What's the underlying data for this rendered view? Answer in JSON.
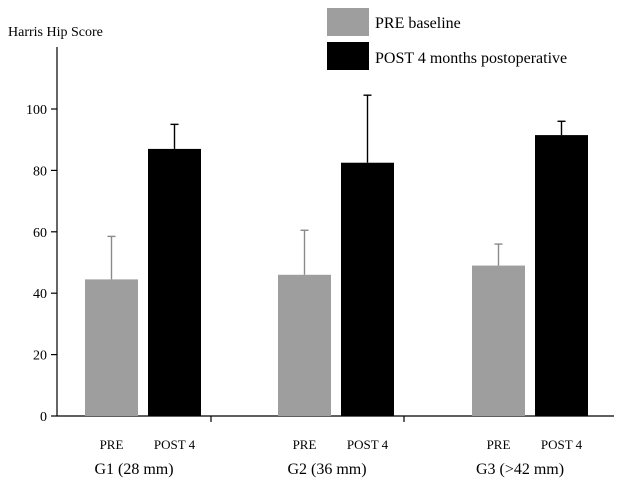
{
  "chart_data": {
    "type": "bar",
    "ylabel": "Harris Hip Score",
    "ylim": [
      0,
      120
    ],
    "yticks": [
      0,
      20,
      40,
      60,
      80,
      100
    ],
    "grid": false,
    "legend_position": "top-right",
    "series": [
      {
        "name": "PRE baseline",
        "color": "#9e9e9e"
      },
      {
        "name": "POST 4 months postoperative",
        "color": "#000000"
      }
    ],
    "groups": [
      {
        "label": "G1 (28 mm)",
        "bars": [
          {
            "label": "PRE",
            "series": 0,
            "value": 44.5,
            "error": 14
          },
          {
            "label": "POST 4",
            "series": 1,
            "value": 87,
            "error": 8
          }
        ]
      },
      {
        "label": "G2 (36 mm)",
        "bars": [
          {
            "label": "PRE",
            "series": 0,
            "value": 46,
            "error": 14.5
          },
          {
            "label": "POST 4",
            "series": 1,
            "value": 82.5,
            "error": 22
          }
        ]
      },
      {
        "label": "G3 (>42 mm)",
        "bars": [
          {
            "label": "PRE",
            "series": 0,
            "value": 49,
            "error": 7
          },
          {
            "label": "POST 4",
            "series": 1,
            "value": 91.5,
            "error": 4.5
          }
        ]
      }
    ]
  }
}
